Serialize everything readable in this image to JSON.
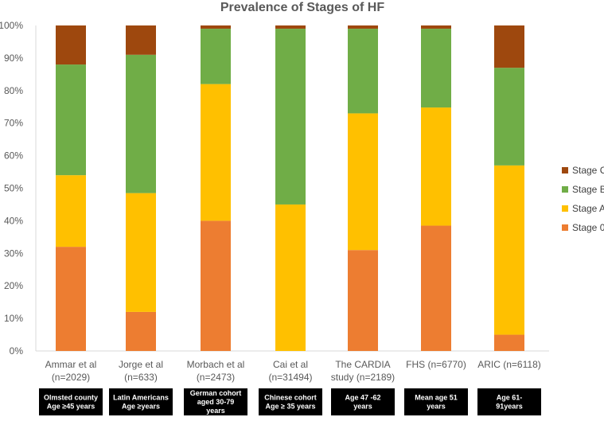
{
  "chart_data": {
    "type": "bar",
    "stacked": true,
    "title": "Prevalence of Stages of HF",
    "ylim": [
      0,
      100
    ],
    "ytick_labels": [
      "0%",
      "10%",
      "20%",
      "30%",
      "40%",
      "50%",
      "60%",
      "70%",
      "80%",
      "90%",
      "100%"
    ],
    "grid": false,
    "legend_position": "right",
    "categories": [
      {
        "line1": "Ammar et al",
        "line2": "(n=2029)",
        "sub": [
          "Olmsted county",
          "Age ≥45 years"
        ]
      },
      {
        "line1": "Jorge et al",
        "line2": "(n=633)",
        "sub": [
          "Latin Americans",
          "Age ≥years"
        ]
      },
      {
        "line1": "Morbach et al",
        "line2": "(n=2473)",
        "sub": [
          "German cohort",
          "aged 30-79",
          "years"
        ]
      },
      {
        "line1": "Cai et al",
        "line2": "(n=31494)",
        "sub": [
          "Chinese cohort",
          "Age ≥ 35 years"
        ]
      },
      {
        "line1": "The CARDIA",
        "line2": "study (n=2189)",
        "sub": [
          "Age 47 -62",
          "years"
        ]
      },
      {
        "line1": "FHS (n=6770)",
        "line2": "",
        "sub": [
          "Mean age 51",
          "years"
        ]
      },
      {
        "line1": "ARIC (n=6118)",
        "line2": "",
        "sub": [
          "Age 61-",
          "91years"
        ]
      }
    ],
    "series": [
      {
        "name": "Stage 0",
        "color": "#ed7d31",
        "values": [
          32,
          12,
          40,
          0,
          31,
          38.5,
          5
        ]
      },
      {
        "name": "Stage A",
        "color": "#ffc000",
        "values": [
          22,
          36.5,
          42,
          45,
          42,
          36.3,
          52
        ]
      },
      {
        "name": "Stage B",
        "color": "#70ad47",
        "values": [
          34,
          42.5,
          17,
          54,
          26,
          24.2,
          30
        ]
      },
      {
        "name": "Stage C",
        "color": "#9e480e",
        "values": [
          12,
          9,
          1,
          1,
          1,
          1,
          13
        ]
      }
    ]
  }
}
